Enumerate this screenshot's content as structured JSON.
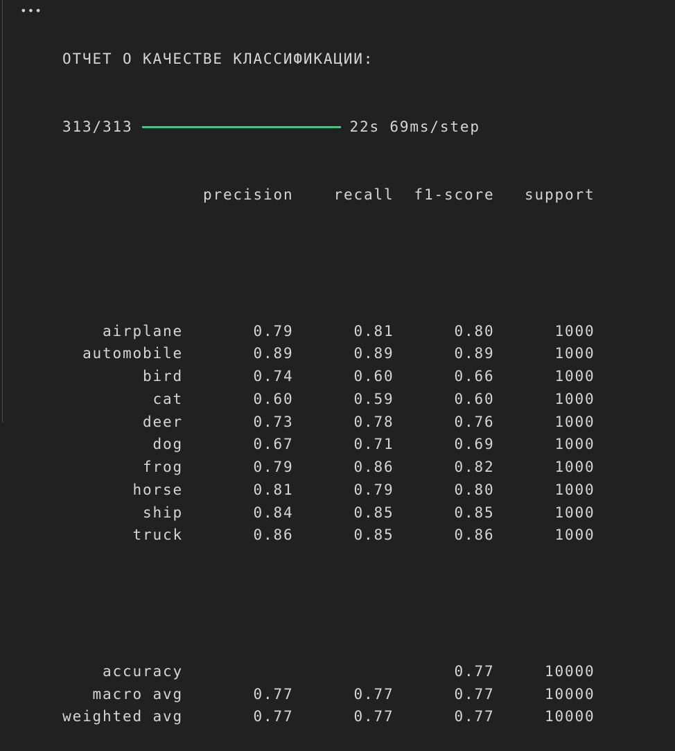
{
  "cell": {
    "menu_icon": "ellipsis-icon",
    "title": "ОТЧЕТ О КАЧЕСТВЕ КЛАССИФИКАЦИИ:",
    "progress": {
      "steps": "313/313",
      "fraction": 1.0,
      "color": "#4cbf8a",
      "timing": "22s 69ms/step"
    }
  },
  "report": {
    "headers": [
      "",
      "precision",
      "recall",
      "f1-score",
      "support"
    ],
    "rows": [
      [
        "airplane",
        "0.79",
        "0.81",
        "0.80",
        "1000"
      ],
      [
        "automobile",
        "0.89",
        "0.89",
        "0.89",
        "1000"
      ],
      [
        "bird",
        "0.74",
        "0.60",
        "0.66",
        "1000"
      ],
      [
        "cat",
        "0.60",
        "0.59",
        "0.60",
        "1000"
      ],
      [
        "deer",
        "0.73",
        "0.78",
        "0.76",
        "1000"
      ],
      [
        "dog",
        "0.67",
        "0.71",
        "0.69",
        "1000"
      ],
      [
        "frog",
        "0.79",
        "0.86",
        "0.82",
        "1000"
      ],
      [
        "horse",
        "0.81",
        "0.79",
        "0.80",
        "1000"
      ],
      [
        "ship",
        "0.84",
        "0.85",
        "0.85",
        "1000"
      ],
      [
        "truck",
        "0.86",
        "0.85",
        "0.86",
        "1000"
      ]
    ],
    "summary": [
      [
        "accuracy",
        "",
        "",
        "0.77",
        "10000"
      ],
      [
        "macro avg",
        "0.77",
        "0.77",
        "0.77",
        "10000"
      ],
      [
        "weighted avg",
        "0.77",
        "0.77",
        "0.77",
        "10000"
      ]
    ]
  }
}
